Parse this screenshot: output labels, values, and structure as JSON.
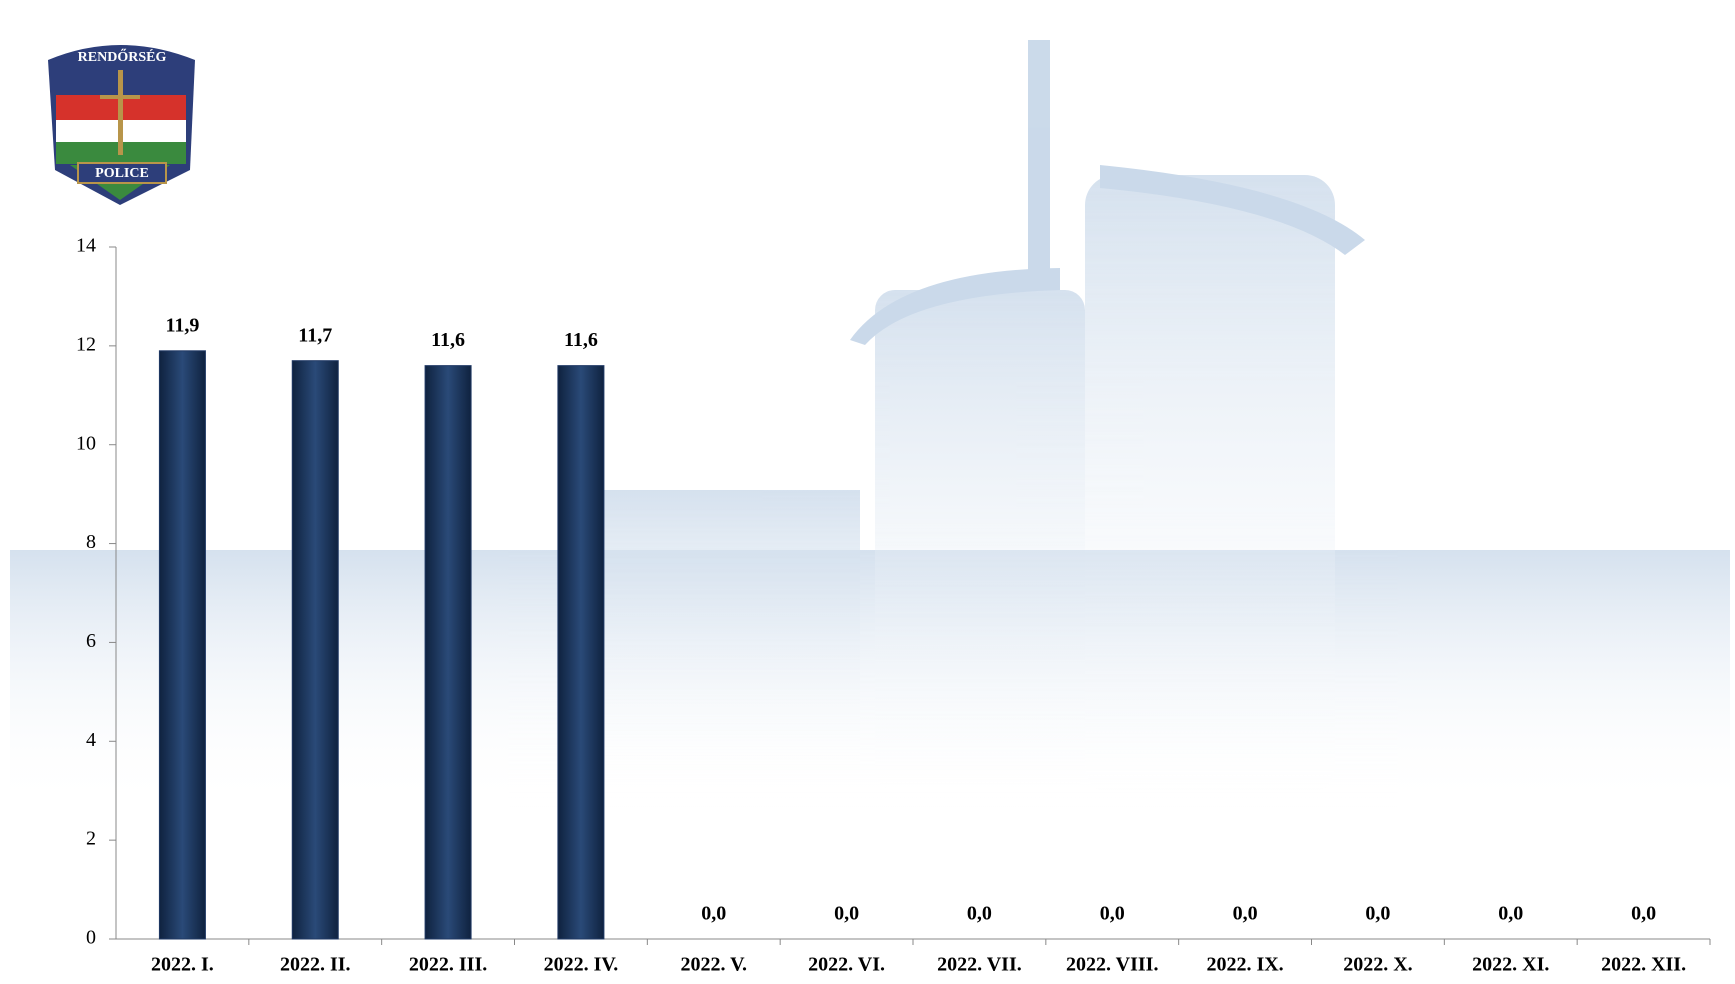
{
  "logo": {
    "top_text": "RENDŐRSÉG",
    "bottom_text": "POLICE"
  },
  "chart_data": {
    "type": "bar",
    "categories": [
      "2022. I.",
      "2022. II.",
      "2022. III.",
      "2022. IV.",
      "2022. V.",
      "2022. VI.",
      "2022. VII.",
      "2022. VIII.",
      "2022. IX.",
      "2022. X.",
      "2022. XI.",
      "2022. XII."
    ],
    "values": [
      11.9,
      11.7,
      11.6,
      11.6,
      0,
      0,
      0,
      0,
      0,
      0,
      0,
      0
    ],
    "value_labels": [
      "11,9",
      "11,7",
      "11,6",
      "11,6",
      "0,0",
      "0,0",
      "0,0",
      "0,0",
      "0,0",
      "0,0",
      "0,0",
      "0,0"
    ],
    "color": "#1f3864",
    "ylim": [
      0,
      14
    ],
    "yticks": [
      0,
      2,
      4,
      6,
      8,
      10,
      12,
      14
    ],
    "grid": false
  }
}
